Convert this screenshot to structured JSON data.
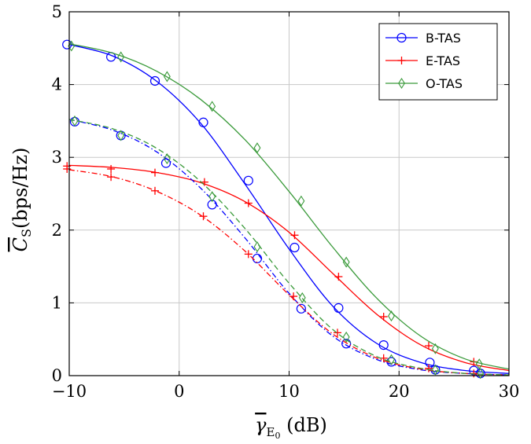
{
  "chart_data": {
    "type": "line",
    "xlim": [
      -10,
      30
    ],
    "ylim": [
      0,
      5
    ],
    "x_ticks": [
      -10,
      0,
      10,
      20,
      30
    ],
    "y_ticks": [
      0,
      1,
      2,
      3,
      4,
      5
    ],
    "x_tick_labels": [
      "−10",
      "0",
      "10",
      "20",
      "30"
    ],
    "y_tick_labels": [
      "0",
      "1",
      "2",
      "3",
      "4",
      "5"
    ],
    "xlabel": "γ̄E0 (dB)",
    "ylabel": "C̄S(bps/Hz)",
    "grid": true,
    "legend_position": "top-right",
    "series": [
      {
        "name": "B-TAS",
        "color": "#0000ff",
        "line": "solid",
        "marker": "circle",
        "x": [
          -10,
          -6,
          -2,
          2,
          6,
          10,
          14,
          18,
          22,
          26,
          30
        ],
        "y": [
          4.55,
          4.39,
          4.04,
          3.46,
          2.63,
          1.74,
          0.95,
          0.44,
          0.18,
          0.07,
          0.03
        ],
        "marker_x": [
          -10.2,
          -6.2,
          -2.2,
          2.2,
          6.3,
          10.5,
          14.5,
          18.6,
          22.8,
          26.8
        ],
        "marker_y": [
          4.55,
          4.38,
          4.05,
          3.48,
          2.68,
          1.76,
          0.93,
          0.42,
          0.18,
          0.07
        ]
      },
      {
        "name": "E-TAS",
        "color": "#ff0000",
        "line": "solid",
        "marker": "plus",
        "x": [
          -10,
          -6,
          -2,
          2,
          6,
          10,
          14,
          18,
          22,
          26,
          30
        ],
        "y": [
          2.89,
          2.86,
          2.79,
          2.65,
          2.39,
          1.97,
          1.4,
          0.84,
          0.42,
          0.18,
          0.07
        ],
        "marker_x": [
          -10.2,
          -6.2,
          -2.2,
          2.3,
          6.3,
          10.5,
          14.5,
          18.6,
          22.7,
          26.8
        ],
        "marker_y": [
          2.88,
          2.84,
          2.79,
          2.66,
          2.37,
          1.93,
          1.36,
          0.81,
          0.41,
          0.19
        ]
      },
      {
        "name": "O-TAS",
        "color": "#3a9a3a",
        "line": "solid",
        "marker": "diamond",
        "x": [
          -10,
          -6,
          -2,
          2,
          6,
          10,
          14,
          18,
          22,
          26,
          30
        ],
        "y": [
          4.56,
          4.43,
          4.18,
          3.79,
          3.24,
          2.53,
          1.76,
          1.06,
          0.54,
          0.23,
          0.09
        ],
        "marker_x": [
          -9.8,
          -5.3,
          -1.1,
          3.0,
          7.1,
          11.1,
          15.2,
          19.3,
          23.3,
          27.3
        ],
        "marker_y": [
          4.53,
          4.38,
          4.11,
          3.7,
          3.13,
          2.4,
          1.56,
          0.82,
          0.37,
          0.16
        ]
      },
      {
        "color": "#0000ff",
        "line": "dashdot",
        "marker": "circle",
        "x": [
          -10,
          -6,
          -2,
          2,
          6,
          10,
          14,
          18,
          22,
          26,
          30
        ],
        "y": [
          3.52,
          3.37,
          3.07,
          2.57,
          1.89,
          1.13,
          0.54,
          0.22,
          0.08,
          0.03,
          0.01
        ],
        "marker_x": [
          -9.5,
          -5.3,
          -1.2,
          3.0,
          7.1,
          11.1,
          15.2,
          19.3,
          23.3,
          27.4
        ],
        "marker_y": [
          3.49,
          3.3,
          2.92,
          2.35,
          1.61,
          0.92,
          0.44,
          0.19,
          0.08,
          0.03
        ]
      },
      {
        "color": "#ff0000",
        "line": "dashdot",
        "marker": "plus",
        "x": [
          -10,
          -6,
          -2,
          2,
          6,
          10,
          14,
          18,
          22,
          26,
          30
        ],
        "y": [
          2.83,
          2.73,
          2.53,
          2.2,
          1.71,
          1.11,
          0.57,
          0.24,
          0.09,
          0.03,
          0.01
        ],
        "marker_x": [
          -10.2,
          -6.2,
          -2.2,
          2.2,
          6.3,
          10.4,
          14.4,
          18.6,
          22.7,
          26.8
        ],
        "marker_y": [
          2.84,
          2.73,
          2.54,
          2.19,
          1.67,
          1.09,
          0.59,
          0.24,
          0.1,
          0.03
        ]
      },
      {
        "color": "#3a9a3a",
        "line": "dashed",
        "marker": "diamond",
        "x": [
          -10,
          -6,
          -2,
          2,
          6,
          10,
          14,
          18,
          22,
          26,
          30
        ],
        "y": [
          3.52,
          3.39,
          3.12,
          2.66,
          2.02,
          1.27,
          0.63,
          0.26,
          0.1,
          0.03,
          0.01
        ],
        "marker_x": [
          -9.5,
          -5.3,
          -1.1,
          3.0,
          7.1,
          11.2,
          15.2,
          19.3,
          23.3,
          27.4
        ],
        "marker_y": [
          3.5,
          3.3,
          2.98,
          2.46,
          1.77,
          1.07,
          0.53,
          0.22,
          0.08,
          0.03
        ]
      }
    ]
  }
}
